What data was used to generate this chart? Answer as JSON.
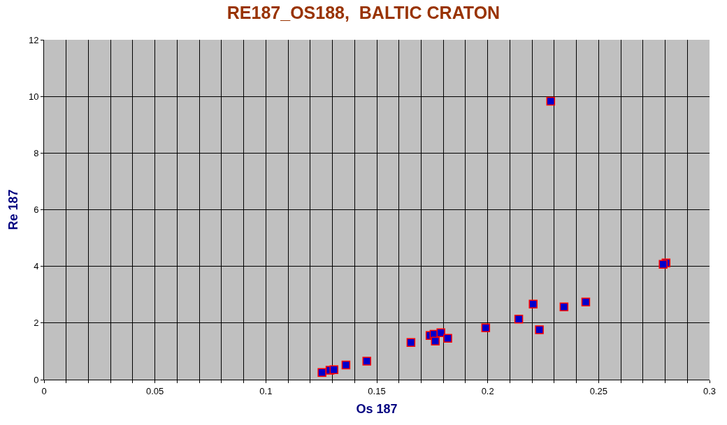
{
  "chart_data": {
    "type": "scatter",
    "title": "RE187_OS188,  BALTIC CRATON",
    "xlabel": "Os 187",
    "ylabel": "Re 187",
    "x": [
      0.1253,
      0.1289,
      0.1307,
      0.1361,
      0.1455,
      0.1654,
      0.174,
      0.1758,
      0.1764,
      0.1789,
      0.182,
      0.1991,
      0.214,
      0.2205,
      0.2233,
      0.2284,
      0.2344,
      0.2442,
      0.2804,
      0.2791
    ],
    "series": [
      {
        "color": "#0000cc",
        "values": [
          0.25,
          0.33,
          0.35,
          0.52,
          0.65,
          1.31,
          1.56,
          1.6,
          1.36,
          1.66,
          1.46,
          1.83,
          2.14,
          2.67,
          1.76,
          9.83,
          2.57,
          2.74,
          4.12,
          4.07
        ]
      }
    ],
    "xlim": [
      0,
      0.3
    ],
    "xticks": [
      0,
      {
        "value": 0.01,
        "label": null
      },
      {
        "value": 0.02,
        "label": null
      },
      {
        "value": 0.03,
        "label": null
      },
      {
        "value": 0.04,
        "label": null
      },
      0.05,
      {
        "value": 0.06,
        "label": null
      },
      {
        "value": 0.07,
        "label": null
      },
      {
        "value": 0.08,
        "label": null
      },
      {
        "value": 0.09,
        "label": null
      },
      0.1,
      {
        "value": 0.11,
        "label": null
      },
      {
        "value": 0.12,
        "label": null
      },
      {
        "value": 0.13,
        "label": null
      },
      {
        "value": 0.14,
        "label": null
      },
      0.15,
      {
        "value": 0.16,
        "label": null
      },
      {
        "value": 0.17,
        "label": null
      },
      {
        "value": 0.18,
        "label": null
      },
      {
        "value": 0.19,
        "label": null
      },
      0.2,
      {
        "value": 0.21,
        "label": null
      },
      {
        "value": 0.22,
        "label": null
      },
      {
        "value": 0.23,
        "label": null
      },
      {
        "value": 0.24,
        "label": null
      },
      0.25,
      {
        "value": 0.26,
        "label": null
      },
      {
        "value": 0.27,
        "label": null
      },
      {
        "value": 0.28,
        "label": null
      },
      {
        "value": 0.29,
        "label": null
      },
      0.3
    ],
    "ylim": [
      0,
      12
    ],
    "yticks": [
      0,
      2,
      4,
      6,
      8,
      10,
      12
    ],
    "grid": true,
    "marker": "square"
  }
}
